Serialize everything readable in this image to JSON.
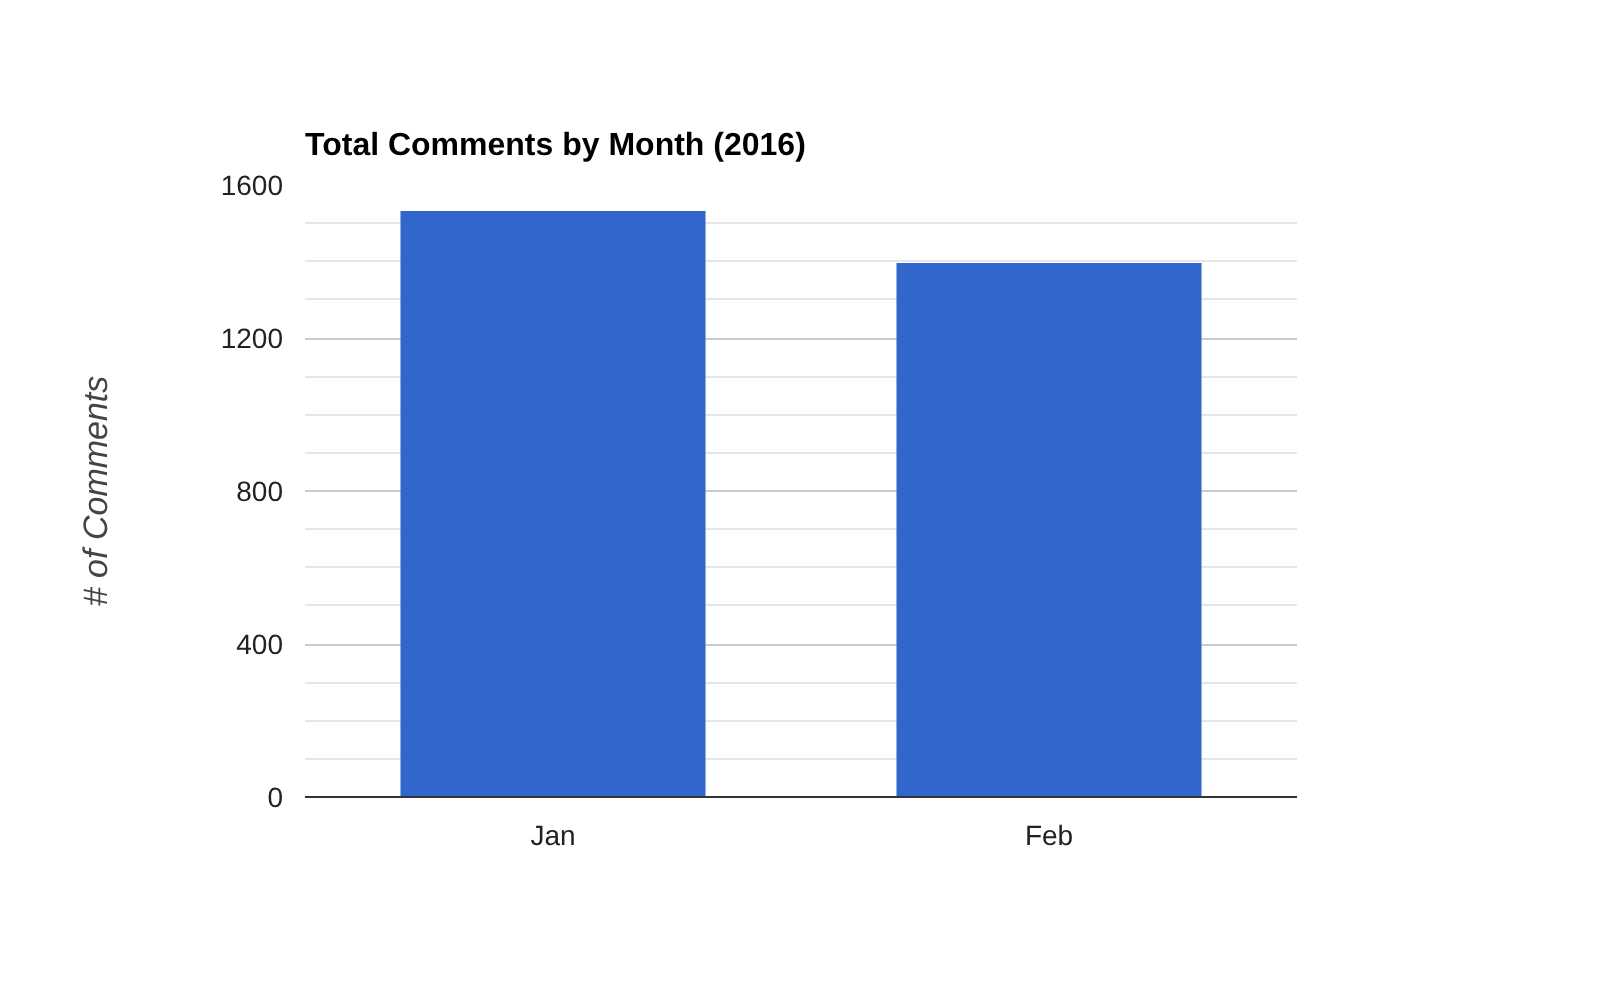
{
  "chart_data": {
    "type": "bar",
    "title": "Total Comments by Month (2016)",
    "ylabel": "# of Comments",
    "categories": [
      "Jan",
      "Feb"
    ],
    "values": [
      1532,
      1396
    ],
    "color": "#3366cc",
    "ylim": [
      0,
      1600
    ],
    "yticks": [
      0,
      400,
      800,
      1200,
      1600
    ],
    "grid": "y"
  }
}
